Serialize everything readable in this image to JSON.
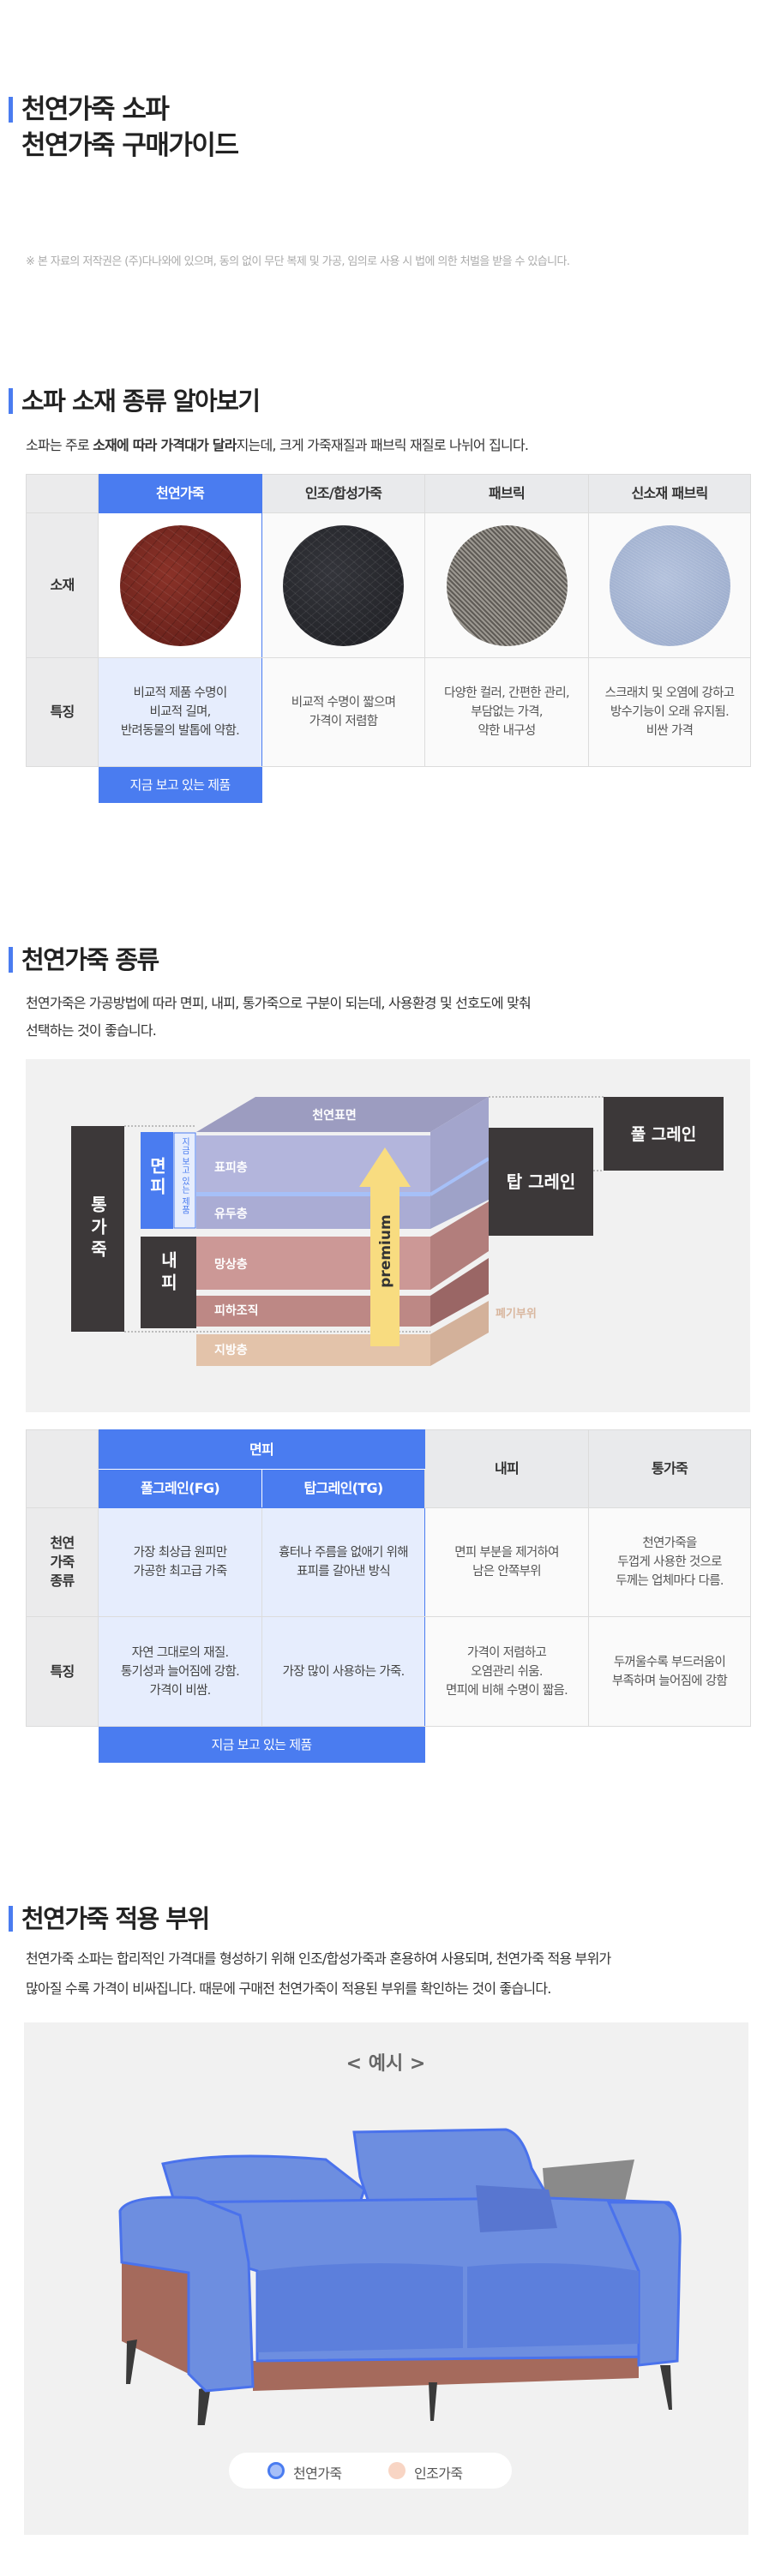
{
  "header": {
    "title_line1": "천연가죽 소파",
    "title_line2": "천연가죽 구매가이드",
    "copyright": "※ 본 자료의 저작권은 (주)다나와에 있으며, 동의 없이 무단 복제 및 가공, 임의로 사용 시 법에 의한 처벌을 받을 수 있습니다."
  },
  "colors": {
    "accent": "#4a7cf0",
    "highlight_cell": "#e6edfd",
    "label_cell": "#ebebec"
  },
  "section1": {
    "title": "소파 소재 종류 알아보기",
    "desc_pre": "소파는 주로 ",
    "desc_bold": "소재에 따라 가격대가 달라",
    "desc_post": "지는데, 크게 가죽재질과 패브릭 재질로 나뉘어 집니다.",
    "row_labels": [
      "소재",
      "특징"
    ],
    "columns": [
      {
        "name": "천연가죽",
        "swatch": "red-brown-leather",
        "feature": [
          "비교적 제품 수명이",
          "비교적 길며,",
          "반려동물의 발톱에 약함."
        ]
      },
      {
        "name": "인조/합성가죽",
        "swatch": "black-leather",
        "feature": [
          "비교적 수명이 짧으며",
          "가격이 저렴함"
        ]
      },
      {
        "name": "패브릭",
        "swatch": "gray-tweed-fabric",
        "feature": [
          "다양한 컬러, 간편한 관리,",
          "부담없는 가격,",
          "약한 내구성"
        ]
      },
      {
        "name": "신소재 패브릭",
        "swatch": "light-blue-fabric",
        "feature": [
          "스크래치 및 오염에 강하고",
          "방수기능이 오래 유지됨.",
          "비싼 가격"
        ]
      }
    ],
    "badge": "지금 보고 있는 제품"
  },
  "section2": {
    "title": "천연가죽 종류",
    "desc_line1": "천연가죽은 가공방법에 따라 면피, 내피, 통가죽으로 구분이 되는데, 사용환경 및 선호도에 맞춰",
    "desc_line2": "선택하는 것이 좋습니다.",
    "diagram": {
      "whole": "통가죽",
      "top_grain_side": "면피",
      "inner_side": "내피",
      "current_vertical": "지금 보고 있는 제품",
      "surface": "천연표면",
      "layers": [
        "표피층",
        "유두층",
        "망상층",
        "피하조직",
        "지방층"
      ],
      "arrow": "premium",
      "top_grain": "탑 그레인",
      "full_grain": "풀 그레인",
      "waste": "폐기부위"
    },
    "table": {
      "group_header": "면피",
      "headers": [
        "풀그레인(FG)",
        "탑그레인(TG)",
        "내피",
        "통가죽"
      ],
      "row_labels": [
        [
          "천연",
          "가죽",
          "종류"
        ],
        [
          "특징"
        ]
      ],
      "types": [
        [
          "가장 최상급 원피만",
          "가공한 최고급 가죽"
        ],
        [
          "흉터나 주름을 없애기 위해",
          "표피를 갈아낸 방식"
        ],
        [
          "면피 부분을 제거하여",
          "남은 안쪽부위"
        ],
        [
          "천연가죽을",
          "두껍게 사용한 것으로",
          "두께는 업체마다 다름."
        ]
      ],
      "features": [
        [
          "자연 그대로의 재질.",
          "통기성과 늘어짐에 강함.",
          "가격이 비쌈."
        ],
        [
          "가장 많이 사용하는 가죽."
        ],
        [
          "가격이 저렴하고",
          "오염관리 쉬움.",
          "면피에 비해 수명이 짧음."
        ],
        [
          "두꺼울수록 부드러움이",
          "부족하며 늘어짐에 강함"
        ]
      ],
      "badge": "지금 보고 있는 제품"
    }
  },
  "section3": {
    "title": "천연가죽 적용 부위",
    "desc_line1": "천연가죽 소파는 합리적인 가격대를 형성하기 위해 인조/합성가죽과 혼용하여 사용되며, 천연가죽 적용 부위가",
    "desc_line2": "많아질 수록 가격이 비싸집니다. 때문에 구매전 천연가죽이 적용된 부위를 확인하는 것이 좋습니다.",
    "example_label": "< 예시 >",
    "legend": [
      {
        "label": "천연가죽",
        "color": "#4a7cf0"
      },
      {
        "label": "인조가죽",
        "color": "#f8d5c4"
      }
    ]
  }
}
